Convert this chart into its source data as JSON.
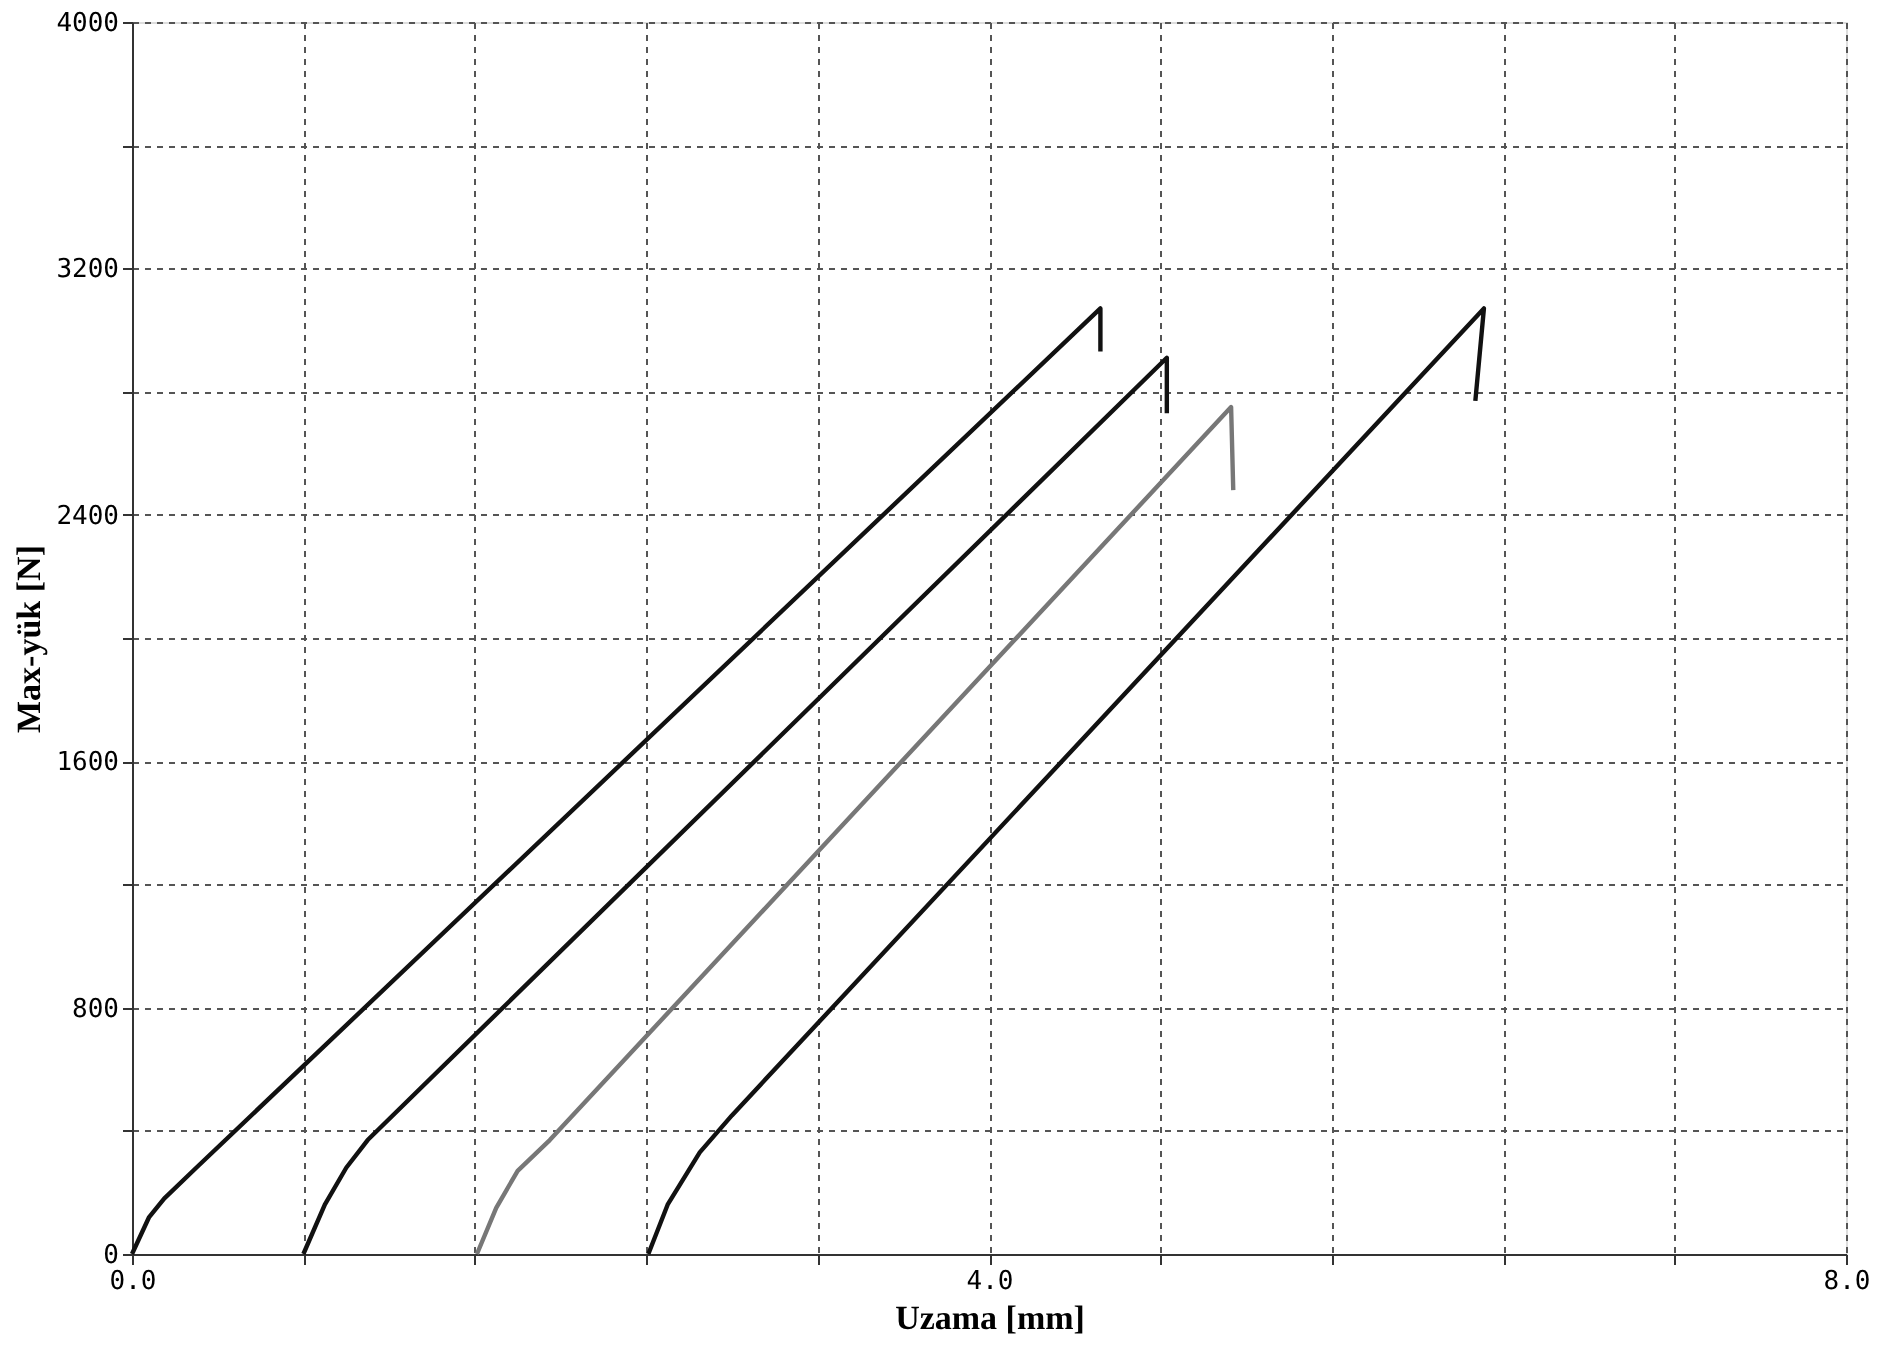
{
  "chart_data": {
    "type": "line",
    "xlabel": "Uzama [mm]",
    "ylabel": "Max-yük [N]",
    "xlim": [
      0,
      8
    ],
    "ylim": [
      0,
      4000
    ],
    "xticks": [
      {
        "value": 0,
        "label": "0.0"
      },
      {
        "value": 0.8,
        "label": null
      },
      {
        "value": 1.6,
        "label": null
      },
      {
        "value": 2.4,
        "label": null
      },
      {
        "value": 3.2,
        "label": null
      },
      {
        "value": 4,
        "label": "4.0"
      },
      {
        "value": 4.8,
        "label": null
      },
      {
        "value": 5.6,
        "label": null
      },
      {
        "value": 6.4,
        "label": null
      },
      {
        "value": 7.2,
        "label": null
      },
      {
        "value": 8,
        "label": "8.0"
      }
    ],
    "yticks": [
      0,
      {
        "value": 400,
        "label": null
      },
      800,
      {
        "value": 1200,
        "label": null
      },
      1600,
      {
        "value": 2000,
        "label": null
      },
      2400,
      {
        "value": 2800,
        "label": null
      },
      3200,
      {
        "value": 3600,
        "label": null
      },
      4000
    ],
    "grid": true,
    "line_style": "solid",
    "marker": "none",
    "series": [
      {
        "color": "#111111",
        "x": [
          0,
          0.08,
          0.15,
          0.3,
          4.52,
          4.52
        ],
        "values": [
          0,
          120,
          180,
          280,
          3070,
          2930
        ]
      },
      {
        "color": "#111111",
        "x": [
          0.8,
          0.9,
          1.0,
          1.1,
          4.83,
          4.83
        ],
        "values": [
          0,
          160,
          280,
          370,
          2910,
          2730
        ]
      },
      {
        "color": "#777777",
        "x": [
          1.61,
          1.7,
          1.8,
          1.95,
          5.13,
          5.14
        ],
        "values": [
          0,
          150,
          270,
          370,
          2750,
          2480
        ]
      },
      {
        "color": "#111111",
        "x": [
          2.41,
          2.5,
          2.65,
          2.8,
          6.31,
          6.27
        ],
        "values": [
          0,
          160,
          330,
          450,
          3070,
          2770
        ]
      }
    ]
  }
}
